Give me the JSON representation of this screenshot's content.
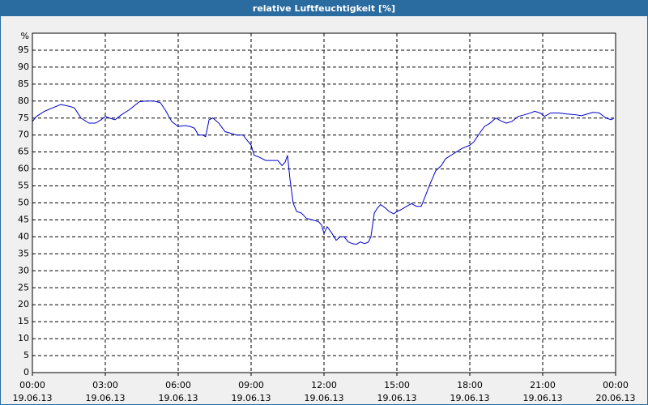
{
  "chart_data": {
    "type": "line",
    "title": "relative Luftfeuchtigkeit [%]",
    "xlim": [
      0,
      24
    ],
    "xticks": [
      {
        "value": 0,
        "label": "00:00\n19.06.13"
      },
      {
        "value": 3,
        "label": "03:00\n19.06.13"
      },
      {
        "value": 6,
        "label": "06:00\n19.06.13"
      },
      {
        "value": 9,
        "label": "09:00\n19.06.13"
      },
      {
        "value": 12,
        "label": "12:00\n19.06.13"
      },
      {
        "value": 15,
        "label": "15:00\n19.06.13"
      },
      {
        "value": 18,
        "label": "18:00\n19.06.13"
      },
      {
        "value": 21,
        "label": "21:00\n19.06.13"
      },
      {
        "value": 24,
        "label": "00:00\n20.06.13"
      }
    ],
    "ylim": [
      0,
      100
    ],
    "yticks": [
      0,
      5,
      10,
      15,
      20,
      25,
      30,
      35,
      40,
      45,
      50,
      55,
      60,
      65,
      70,
      75,
      80,
      85,
      90,
      95,
      {
        "value": 100,
        "label": "%"
      }
    ],
    "grid": true,
    "series": [
      {
        "name": "relative Luftfeuchtigkeit",
        "color": "#0000cc",
        "x": [
          0,
          0.17,
          0.5,
          0.83,
          1.17,
          1.5,
          1.73,
          2,
          2.33,
          2.6,
          2.83,
          3,
          3.17,
          3.4,
          3.67,
          4,
          4.17,
          4.4,
          4.67,
          5,
          5.27,
          5.5,
          5.73,
          6,
          6.27,
          6.5,
          6.67,
          6.83,
          7,
          7.13,
          7.27,
          7.43,
          7.67,
          7.93,
          8.17,
          8.4,
          8.67,
          8.83,
          9,
          9.13,
          9.33,
          9.6,
          9.87,
          10.1,
          10.27,
          10.4,
          10.5,
          10.6,
          10.73,
          10.87,
          11.07,
          11.27,
          11.5,
          11.77,
          11.9,
          12,
          12.13,
          12.33,
          12.5,
          12.67,
          12.83,
          13,
          13.17,
          13.33,
          13.5,
          13.67,
          13.83,
          13.93,
          14.07,
          14.2,
          14.33,
          14.53,
          14.67,
          14.87,
          15,
          15.17,
          15.4,
          15.6,
          15.8,
          16,
          16.17,
          16.33,
          16.6,
          16.83,
          17,
          17.33,
          17.67,
          18,
          18.17,
          18.4,
          18.6,
          18.83,
          19.07,
          19.27,
          19.5,
          19.73,
          20,
          20.27,
          20.5,
          20.67,
          20.9,
          21.07,
          21.33,
          21.67,
          22,
          22.33,
          22.6,
          22.83,
          23.07,
          23.33,
          23.6,
          23.83,
          23.93
        ],
        "values": [
          74,
          75.5,
          77,
          78,
          79,
          78.5,
          78,
          75,
          73.5,
          73.5,
          74.5,
          75.5,
          75,
          74.5,
          76,
          77.5,
          78.5,
          79.8,
          80,
          80,
          79.5,
          77,
          74,
          72.5,
          72.8,
          72.5,
          72,
          70,
          70,
          69.5,
          74.5,
          75,
          73.5,
          71,
          70.5,
          70,
          70,
          68.5,
          67,
          64,
          63.5,
          62.5,
          62.5,
          62.5,
          61,
          62,
          64,
          57,
          50,
          47.5,
          47,
          45.5,
          45,
          44.5,
          43.5,
          41,
          43,
          41,
          39,
          40,
          40,
          38.5,
          38,
          37.8,
          38.5,
          38,
          38.5,
          40,
          47,
          48.5,
          49.5,
          48.5,
          47.5,
          46.8,
          47.5,
          48,
          49,
          49.8,
          49,
          49,
          52,
          55,
          59.5,
          61,
          63,
          64.5,
          66,
          67,
          68,
          70.5,
          72.5,
          73.5,
          75,
          74.2,
          73.5,
          74,
          75.5,
          76,
          76.5,
          77,
          76.5,
          75.5,
          76.5,
          76.5,
          76.2,
          76,
          75.7,
          76.2,
          76.7,
          76.5,
          75,
          74.5,
          75
        ]
      }
    ]
  }
}
